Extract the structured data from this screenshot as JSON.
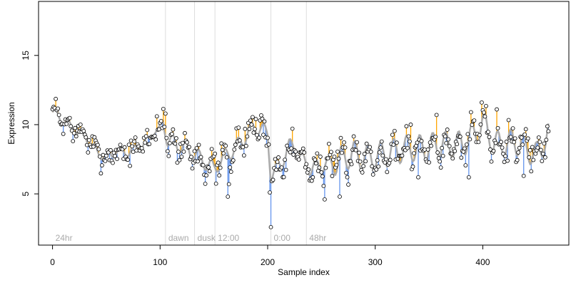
{
  "chart_data": {
    "type": "scatter",
    "title": "",
    "xlabel": "Sample index",
    "ylabel": "Expression",
    "xlim": [
      -13,
      480
    ],
    "ylim": [
      1.3,
      18.9
    ],
    "x_ticks": [
      0,
      100,
      200,
      300,
      400
    ],
    "y_ticks": [
      5,
      10,
      15
    ],
    "grid": false,
    "colors": {
      "smooth": "#aaaaaa",
      "above": "#ffa500",
      "below": "#6495ed",
      "point_fill": "#ffffff",
      "point_stroke": "#000000",
      "marker_line": "#dddddd",
      "marker_text": "#aaaaaa"
    },
    "markers": [
      {
        "x": 0,
        "label": "24hr",
        "line": false
      },
      {
        "x": 105,
        "label": "dawn",
        "line": true
      },
      {
        "x": 132,
        "label": "dusk",
        "line": true
      },
      {
        "x": 151,
        "label": "12:00",
        "line": true
      },
      {
        "x": 203,
        "label": "0:00",
        "line": true
      },
      {
        "x": 236,
        "label": "48hr",
        "line": true
      }
    ],
    "n_points": 462,
    "anchors": [
      [
        0,
        10.9
      ],
      [
        10,
        10.3
      ],
      [
        20,
        9.6
      ],
      [
        30,
        9.3
      ],
      [
        35,
        8.6
      ],
      [
        42,
        8.0
      ],
      [
        50,
        7.6
      ],
      [
        60,
        8.1
      ],
      [
        70,
        8.0
      ],
      [
        80,
        8.3
      ],
      [
        90,
        8.9
      ],
      [
        95,
        9.6
      ],
      [
        100,
        9.5
      ],
      [
        103,
        10.2
      ],
      [
        107,
        8.9
      ],
      [
        115,
        8.6
      ],
      [
        125,
        8.2
      ],
      [
        135,
        7.7
      ],
      [
        145,
        7.1
      ],
      [
        150,
        6.8
      ],
      [
        160,
        7.7
      ],
      [
        170,
        8.3
      ],
      [
        180,
        9.2
      ],
      [
        188,
        9.9
      ],
      [
        195,
        9.6
      ],
      [
        200,
        9.4
      ],
      [
        203,
        6.3
      ],
      [
        210,
        6.9
      ],
      [
        220,
        8.4
      ],
      [
        225,
        8.5
      ],
      [
        230,
        7.6
      ],
      [
        240,
        6.8
      ],
      [
        250,
        7.1
      ],
      [
        260,
        7.2
      ],
      [
        270,
        7.6
      ],
      [
        280,
        7.9
      ],
      [
        290,
        7.6
      ],
      [
        300,
        7.7
      ],
      [
        310,
        7.9
      ],
      [
        320,
        8.1
      ],
      [
        330,
        8.3
      ],
      [
        340,
        8.3
      ],
      [
        350,
        8.4
      ],
      [
        360,
        8.6
      ],
      [
        370,
        8.5
      ],
      [
        380,
        8.6
      ],
      [
        390,
        9.1
      ],
      [
        400,
        10.1
      ],
      [
        405,
        9.5
      ],
      [
        410,
        8.6
      ],
      [
        420,
        8.6
      ],
      [
        430,
        8.8
      ],
      [
        440,
        8.3
      ],
      [
        450,
        7.8
      ],
      [
        461,
        9.3
      ]
    ],
    "seed": 7
  }
}
